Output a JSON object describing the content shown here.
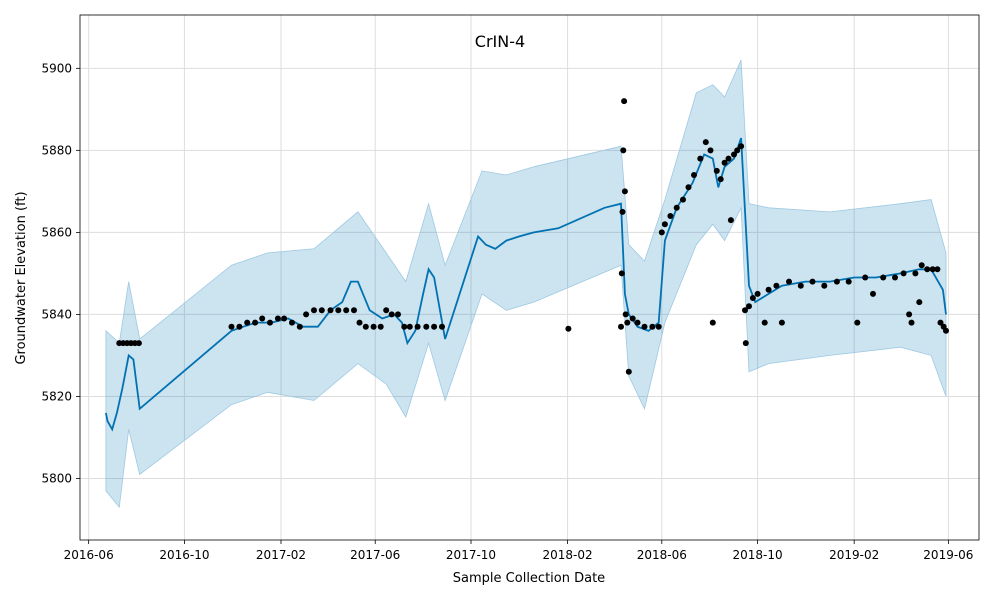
{
  "chart_data": {
    "type": "line",
    "title": "CrIN-4",
    "xlabel": "Sample Collection Date",
    "ylabel": "Groundwater Elevation (ft)",
    "x_axis": {
      "type": "date",
      "range": [
        "2016-05-21",
        "2019-07-10"
      ],
      "ticks": [
        "2016-06",
        "2016-10",
        "2017-02",
        "2017-06",
        "2017-10",
        "2018-02",
        "2018-06",
        "2018-10",
        "2019-02",
        "2019-06"
      ]
    },
    "y_axis": {
      "range": [
        5785,
        5913
      ],
      "ticks": [
        5800,
        5820,
        5840,
        5860,
        5880,
        5900
      ]
    },
    "grid": true,
    "colors": {
      "forecast": "#0072B2",
      "interval": "#0072B2",
      "observed": "#000000",
      "grid": "#dddddd"
    },
    "series": [
      {
        "role": "forecast",
        "points": [
          [
            "2016-06-23",
            5816
          ],
          [
            "2016-06-25",
            5814
          ],
          [
            "2016-07-01",
            5812
          ],
          [
            "2016-07-07",
            5816
          ],
          [
            "2016-07-14",
            5822
          ],
          [
            "2016-07-22",
            5830
          ],
          [
            "2016-07-28",
            5829
          ],
          [
            "2016-08-05",
            5817
          ],
          [
            "2016-11-30",
            5836
          ],
          [
            "2016-12-15",
            5837
          ],
          [
            "2016-12-31",
            5838
          ],
          [
            "2017-01-20",
            5838
          ],
          [
            "2017-02-10",
            5839
          ],
          [
            "2017-03-01",
            5837
          ],
          [
            "2017-03-20",
            5837
          ],
          [
            "2017-04-05",
            5841
          ],
          [
            "2017-04-20",
            5843
          ],
          [
            "2017-05-01",
            5848
          ],
          [
            "2017-05-10",
            5848
          ],
          [
            "2017-05-25",
            5841
          ],
          [
            "2017-06-10",
            5839
          ],
          [
            "2017-06-25",
            5840
          ],
          [
            "2017-07-05",
            5838
          ],
          [
            "2017-07-12",
            5833
          ],
          [
            "2017-07-22",
            5836
          ],
          [
            "2017-08-01",
            5845
          ],
          [
            "2017-08-08",
            5851
          ],
          [
            "2017-08-15",
            5849
          ],
          [
            "2017-08-29",
            5834
          ],
          [
            "2017-10-10",
            5859
          ],
          [
            "2017-10-20",
            5857
          ],
          [
            "2017-11-01",
            5856
          ],
          [
            "2017-11-15",
            5858
          ],
          [
            "2017-12-01",
            5859
          ],
          [
            "2017-12-20",
            5860
          ],
          [
            "2018-01-20",
            5861
          ],
          [
            "2018-03-20",
            5866
          ],
          [
            "2018-04-10",
            5867
          ],
          [
            "2018-04-15",
            5845
          ],
          [
            "2018-04-20",
            5840
          ],
          [
            "2018-05-01",
            5837
          ],
          [
            "2018-05-15",
            5836
          ],
          [
            "2018-05-28",
            5838
          ],
          [
            "2018-06-05",
            5858
          ],
          [
            "2018-06-20",
            5866
          ],
          [
            "2018-07-10",
            5872
          ],
          [
            "2018-07-25",
            5879
          ],
          [
            "2018-08-05",
            5878
          ],
          [
            "2018-08-12",
            5871
          ],
          [
            "2018-08-20",
            5876
          ],
          [
            "2018-09-01",
            5878
          ],
          [
            "2018-09-10",
            5883
          ],
          [
            "2018-09-20",
            5847
          ],
          [
            "2018-09-28",
            5843
          ],
          [
            "2018-10-15",
            5845
          ],
          [
            "2018-11-01",
            5847
          ],
          [
            "2018-12-01",
            5848
          ],
          [
            "2019-01-01",
            5848
          ],
          [
            "2019-02-01",
            5849
          ],
          [
            "2019-03-01",
            5849
          ],
          [
            "2019-04-01",
            5850
          ],
          [
            "2019-04-25",
            5851
          ],
          [
            "2019-05-10",
            5851
          ],
          [
            "2019-05-25",
            5846
          ],
          [
            "2019-05-29",
            5840
          ]
        ]
      },
      {
        "role": "upper",
        "points": [
          [
            "2016-06-23",
            5836
          ],
          [
            "2016-07-10",
            5833
          ],
          [
            "2016-07-22",
            5848
          ],
          [
            "2016-08-05",
            5834
          ],
          [
            "2016-11-30",
            5852
          ],
          [
            "2017-01-15",
            5855
          ],
          [
            "2017-03-15",
            5856
          ],
          [
            "2017-05-10",
            5865
          ],
          [
            "2017-06-15",
            5855
          ],
          [
            "2017-07-10",
            5848
          ],
          [
            "2017-08-08",
            5867
          ],
          [
            "2017-08-29",
            5852
          ],
          [
            "2017-10-15",
            5875
          ],
          [
            "2017-11-15",
            5874
          ],
          [
            "2017-12-20",
            5876
          ],
          [
            "2018-04-10",
            5881
          ],
          [
            "2018-04-20",
            5857
          ],
          [
            "2018-05-10",
            5853
          ],
          [
            "2018-06-05",
            5868
          ],
          [
            "2018-07-15",
            5894
          ],
          [
            "2018-08-05",
            5896
          ],
          [
            "2018-08-20",
            5893
          ],
          [
            "2018-09-10",
            5902
          ],
          [
            "2018-09-20",
            5867
          ],
          [
            "2018-10-15",
            5866
          ],
          [
            "2019-01-01",
            5865
          ],
          [
            "2019-04-01",
            5867
          ],
          [
            "2019-05-10",
            5868
          ],
          [
            "2019-05-29",
            5855
          ]
        ]
      },
      {
        "role": "lower",
        "points": [
          [
            "2016-06-23",
            5797
          ],
          [
            "2016-07-10",
            5793
          ],
          [
            "2016-07-22",
            5812
          ],
          [
            "2016-08-05",
            5801
          ],
          [
            "2016-11-30",
            5818
          ],
          [
            "2017-01-15",
            5821
          ],
          [
            "2017-03-15",
            5819
          ],
          [
            "2017-05-10",
            5828
          ],
          [
            "2017-06-15",
            5823
          ],
          [
            "2017-07-10",
            5815
          ],
          [
            "2017-08-08",
            5833
          ],
          [
            "2017-08-29",
            5819
          ],
          [
            "2017-10-15",
            5845
          ],
          [
            "2017-11-15",
            5841
          ],
          [
            "2017-12-20",
            5843
          ],
          [
            "2018-04-10",
            5852
          ],
          [
            "2018-04-20",
            5825
          ],
          [
            "2018-05-10",
            5817
          ],
          [
            "2018-06-05",
            5838
          ],
          [
            "2018-07-15",
            5857
          ],
          [
            "2018-08-05",
            5862
          ],
          [
            "2018-08-20",
            5858
          ],
          [
            "2018-09-10",
            5866
          ],
          [
            "2018-09-20",
            5826
          ],
          [
            "2018-10-15",
            5828
          ],
          [
            "2019-01-01",
            5830
          ],
          [
            "2019-04-01",
            5832
          ],
          [
            "2019-05-10",
            5830
          ],
          [
            "2019-05-29",
            5820
          ]
        ]
      },
      {
        "role": "observed",
        "points": [
          [
            "2016-07-10",
            5833
          ],
          [
            "2016-07-15",
            5833
          ],
          [
            "2016-07-20",
            5833
          ],
          [
            "2016-07-25",
            5833
          ],
          [
            "2016-07-30",
            5833
          ],
          [
            "2016-08-04",
            5833
          ],
          [
            "2016-11-30",
            5837
          ],
          [
            "2016-12-10",
            5837
          ],
          [
            "2016-12-20",
            5838
          ],
          [
            "2016-12-30",
            5838
          ],
          [
            "2017-01-08",
            5839
          ],
          [
            "2017-01-18",
            5838
          ],
          [
            "2017-01-28",
            5839
          ],
          [
            "2017-02-05",
            5839
          ],
          [
            "2017-02-15",
            5838
          ],
          [
            "2017-02-25",
            5837
          ],
          [
            "2017-03-05",
            5840
          ],
          [
            "2017-03-15",
            5841
          ],
          [
            "2017-03-25",
            5841
          ],
          [
            "2017-04-05",
            5841
          ],
          [
            "2017-04-15",
            5841
          ],
          [
            "2017-04-25",
            5841
          ],
          [
            "2017-05-05",
            5841
          ],
          [
            "2017-05-12",
            5838
          ],
          [
            "2017-05-20",
            5837
          ],
          [
            "2017-05-30",
            5837
          ],
          [
            "2017-06-08",
            5837
          ],
          [
            "2017-06-15",
            5841
          ],
          [
            "2017-06-22",
            5840
          ],
          [
            "2017-06-30",
            5840
          ],
          [
            "2017-07-08",
            5837
          ],
          [
            "2017-07-15",
            5837
          ],
          [
            "2017-07-25",
            5837
          ],
          [
            "2017-08-05",
            5837
          ],
          [
            "2017-08-15",
            5837
          ],
          [
            "2017-08-25",
            5837
          ],
          [
            "2018-02-02",
            5836.5
          ],
          [
            "2018-04-10",
            5837
          ],
          [
            "2018-04-11",
            5850
          ],
          [
            "2018-04-12",
            5865
          ],
          [
            "2018-04-13",
            5880
          ],
          [
            "2018-04-14",
            5892
          ],
          [
            "2018-04-15",
            5870
          ],
          [
            "2018-04-16",
            5840
          ],
          [
            "2018-04-18",
            5838
          ],
          [
            "2018-04-20",
            5826
          ],
          [
            "2018-04-25",
            5839
          ],
          [
            "2018-05-01",
            5838
          ],
          [
            "2018-05-10",
            5837
          ],
          [
            "2018-05-20",
            5837
          ],
          [
            "2018-05-28",
            5837
          ],
          [
            "2018-06-01",
            5860
          ],
          [
            "2018-06-05",
            5862
          ],
          [
            "2018-06-12",
            5864
          ],
          [
            "2018-06-20",
            5866
          ],
          [
            "2018-06-28",
            5868
          ],
          [
            "2018-07-05",
            5871
          ],
          [
            "2018-07-12",
            5874
          ],
          [
            "2018-07-20",
            5878
          ],
          [
            "2018-07-27",
            5882
          ],
          [
            "2018-08-02",
            5880
          ],
          [
            "2018-08-05",
            5838
          ],
          [
            "2018-08-10",
            5875
          ],
          [
            "2018-08-15",
            5873
          ],
          [
            "2018-08-20",
            5877
          ],
          [
            "2018-08-25",
            5878
          ],
          [
            "2018-08-28",
            5863
          ],
          [
            "2018-09-01",
            5879
          ],
          [
            "2018-09-05",
            5880
          ],
          [
            "2018-09-10",
            5881
          ],
          [
            "2018-09-15",
            5841
          ],
          [
            "2018-09-16",
            5833
          ],
          [
            "2018-09-20",
            5842
          ],
          [
            "2018-09-25",
            5844
          ],
          [
            "2018-10-01",
            5845
          ],
          [
            "2018-10-10",
            5838
          ],
          [
            "2018-10-15",
            5846
          ],
          [
            "2018-10-25",
            5847
          ],
          [
            "2018-11-01",
            5838
          ],
          [
            "2018-11-10",
            5848
          ],
          [
            "2018-11-25",
            5847
          ],
          [
            "2018-12-10",
            5848
          ],
          [
            "2018-12-25",
            5847
          ],
          [
            "2019-01-10",
            5848
          ],
          [
            "2019-01-25",
            5848
          ],
          [
            "2019-02-05",
            5838
          ],
          [
            "2019-02-15",
            5849
          ],
          [
            "2019-02-25",
            5845
          ],
          [
            "2019-03-10",
            5849
          ],
          [
            "2019-03-25",
            5849
          ],
          [
            "2019-04-05",
            5850
          ],
          [
            "2019-04-12",
            5840
          ],
          [
            "2019-04-15",
            5838
          ],
          [
            "2019-04-20",
            5850
          ],
          [
            "2019-04-25",
            5843
          ],
          [
            "2019-04-28",
            5852
          ],
          [
            "2019-05-05",
            5851
          ],
          [
            "2019-05-12",
            5851
          ],
          [
            "2019-05-18",
            5851
          ],
          [
            "2019-05-22",
            5838
          ],
          [
            "2019-05-26",
            5837
          ],
          [
            "2019-05-29",
            5836
          ]
        ]
      }
    ]
  }
}
